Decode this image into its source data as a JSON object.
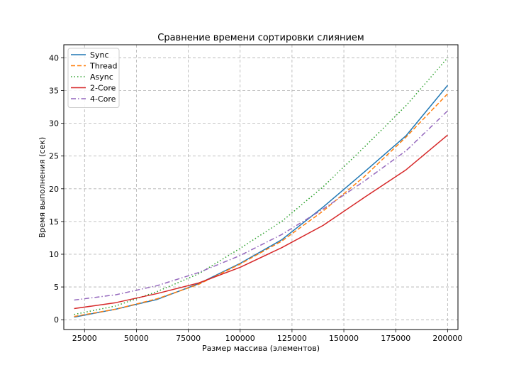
{
  "chart_data": {
    "type": "line",
    "title": "Сравнение времени сортировки слиянием",
    "xlabel": "Размер массива (элементов)",
    "ylabel": "Время выполнения (сек)",
    "xlim": [
      15000,
      205000
    ],
    "ylim": [
      -1.5,
      42
    ],
    "xticks": [
      25000,
      50000,
      75000,
      100000,
      125000,
      150000,
      175000,
      200000
    ],
    "yticks": [
      0,
      5,
      10,
      15,
      20,
      25,
      30,
      35,
      40
    ],
    "grid": true,
    "legend_position": "upper-left",
    "x": [
      20000,
      40000,
      60000,
      80000,
      100000,
      120000,
      140000,
      160000,
      180000,
      200000
    ],
    "series": [
      {
        "name": "Sync",
        "color": "#1f77b4",
        "dash": "solid",
        "values": [
          0.4,
          1.6,
          3.1,
          5.5,
          8.6,
          12.2,
          17.2,
          22.6,
          28.1,
          35.8
        ]
      },
      {
        "name": "Thread",
        "color": "#ff7f0e",
        "dash": "dashed",
        "values": [
          0.5,
          1.6,
          3.2,
          5.4,
          8.5,
          12.0,
          16.6,
          21.9,
          27.9,
          34.5
        ]
      },
      {
        "name": "Async",
        "color": "#2ca02c",
        "dash": "dotted",
        "values": [
          0.8,
          2.1,
          4.3,
          7.0,
          10.9,
          15.0,
          20.3,
          26.4,
          32.7,
          40.0
        ]
      },
      {
        "name": "2-Core",
        "color": "#d62728",
        "dash": "solid",
        "values": [
          1.7,
          2.6,
          4.0,
          5.6,
          8.0,
          11.0,
          14.4,
          18.7,
          22.9,
          28.2
        ]
      },
      {
        "name": "4-Core",
        "color": "#9467bd",
        "dash": "dashdot",
        "values": [
          3.0,
          3.8,
          5.2,
          7.2,
          9.8,
          13.0,
          16.9,
          21.2,
          25.8,
          31.9
        ]
      }
    ]
  }
}
